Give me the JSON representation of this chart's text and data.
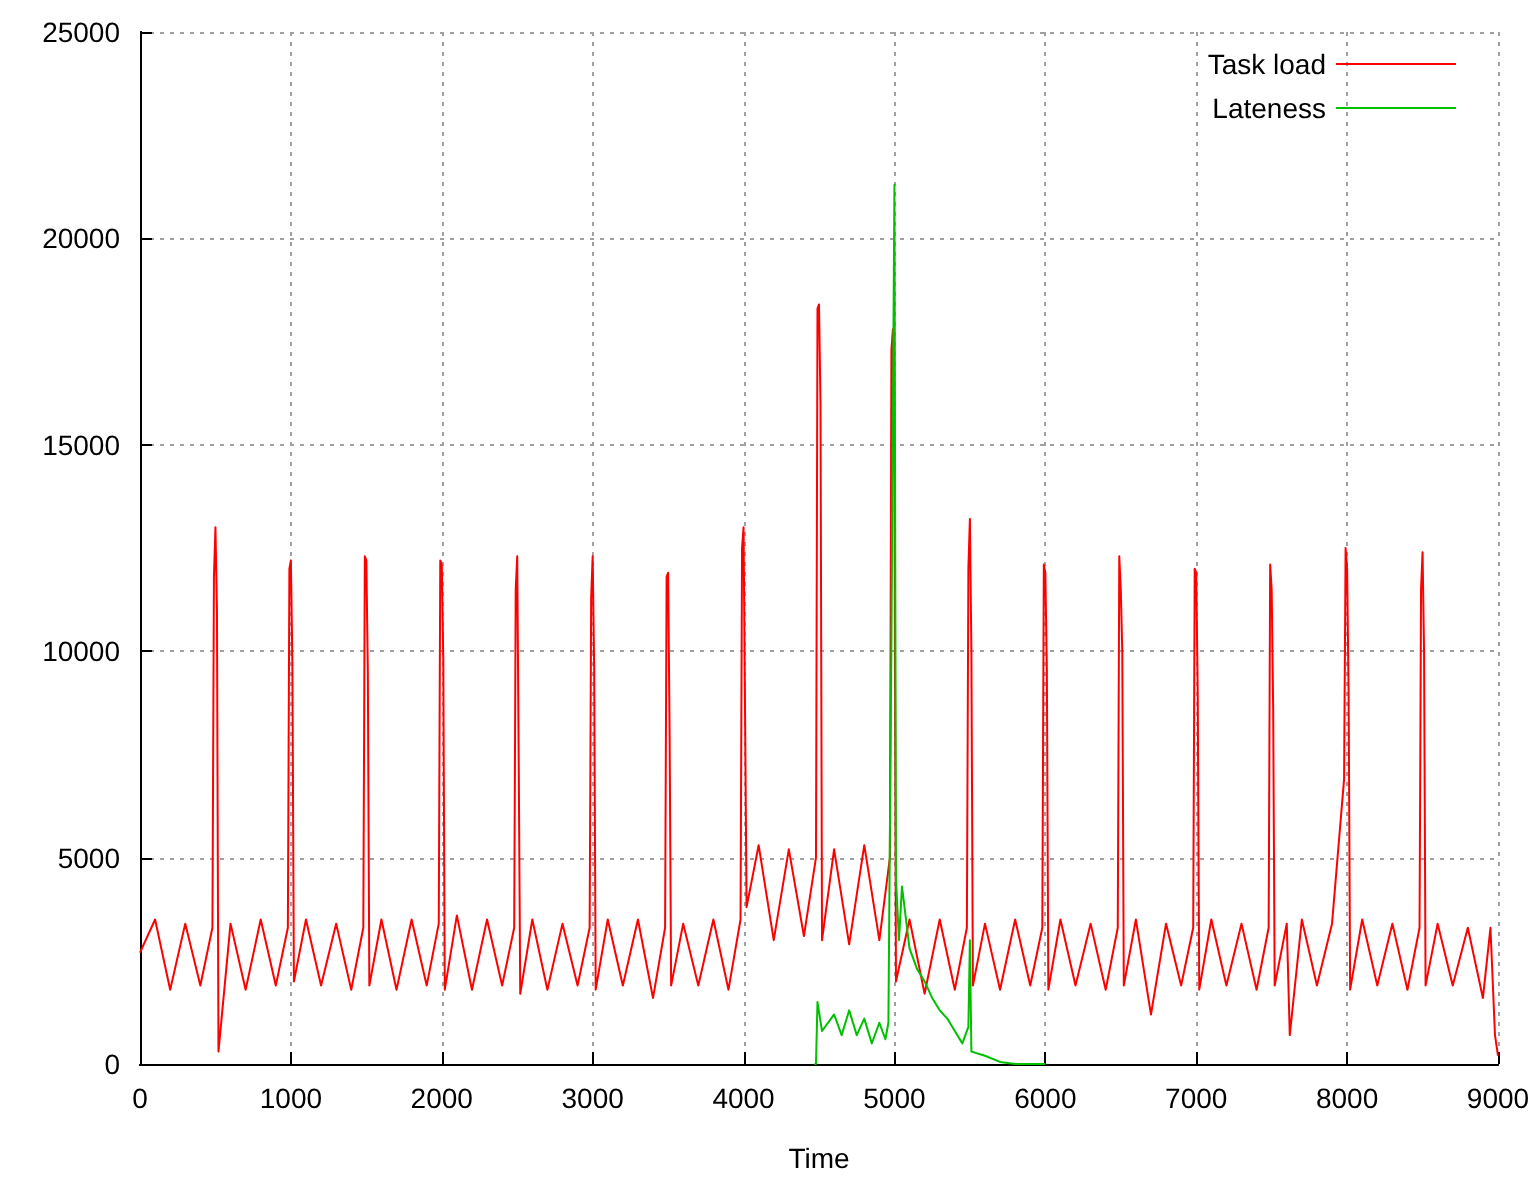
{
  "chart_data": {
    "type": "line",
    "xlabel": "Time",
    "xlim": [
      0,
      9000
    ],
    "xticks": [
      0,
      1000,
      2000,
      3000,
      4000,
      5000,
      6000,
      7000,
      8000,
      9000
    ],
    "ylim": [
      0,
      25000
    ],
    "yticks": [
      0,
      5000,
      10000,
      15000,
      20000,
      25000
    ],
    "grid": true,
    "legend": "top right",
    "marker": "none",
    "line_style": "solid",
    "series": [
      {
        "name": "Task load",
        "color": "#ff0000",
        "x": [
          0,
          100,
          200,
          300,
          400,
          480,
          490,
          500,
          510,
          520,
          600,
          700,
          800,
          900,
          980,
          990,
          1000,
          1010,
          1020,
          1100,
          1200,
          1300,
          1400,
          1480,
          1490,
          1500,
          1510,
          1520,
          1600,
          1700,
          1800,
          1900,
          1980,
          1990,
          2000,
          2010,
          2020,
          2100,
          2200,
          2300,
          2400,
          2480,
          2490,
          2500,
          2510,
          2520,
          2600,
          2700,
          2800,
          2900,
          2980,
          2990,
          3000,
          3010,
          3020,
          3100,
          3200,
          3300,
          3400,
          3480,
          3490,
          3500,
          3510,
          3520,
          3600,
          3700,
          3800,
          3900,
          3980,
          3990,
          4000,
          4010,
          4020,
          4100,
          4200,
          4300,
          4400,
          4480,
          4490,
          4500,
          4510,
          4520,
          4600,
          4700,
          4800,
          4900,
          4970,
          4980,
          4990,
          5000,
          5010,
          5100,
          5200,
          5300,
          5400,
          5480,
          5490,
          5500,
          5510,
          5520,
          5600,
          5700,
          5800,
          5900,
          5980,
          5990,
          6000,
          6010,
          6020,
          6100,
          6200,
          6300,
          6400,
          6480,
          6490,
          6500,
          6510,
          6520,
          6600,
          6700,
          6800,
          6900,
          6980,
          6990,
          7000,
          7010,
          7020,
          7100,
          7200,
          7300,
          7400,
          7480,
          7490,
          7500,
          7510,
          7520,
          7600,
          7620,
          7700,
          7800,
          7900,
          7980,
          7990,
          8000,
          8010,
          8020,
          8100,
          8200,
          8300,
          8400,
          8480,
          8490,
          8500,
          8510,
          8520,
          8600,
          8700,
          8800,
          8900,
          8950,
          8980,
          9000
        ],
        "values": [
          2700,
          3500,
          1800,
          3400,
          1900,
          3300,
          11800,
          13000,
          11000,
          300,
          3400,
          1800,
          3500,
          1900,
          3300,
          12000,
          12200,
          9700,
          2000,
          3500,
          1900,
          3400,
          1800,
          3300,
          12300,
          12200,
          9500,
          1900,
          3500,
          1800,
          3500,
          1900,
          3400,
          12200,
          12100,
          9800,
          1800,
          3600,
          1800,
          3500,
          1900,
          3300,
          11500,
          12300,
          7300,
          1700,
          3500,
          1800,
          3400,
          1900,
          3300,
          11300,
          12300,
          9600,
          1800,
          3500,
          1900,
          3500,
          1600,
          3300,
          11800,
          11900,
          8000,
          1900,
          3400,
          1900,
          3500,
          1800,
          3500,
          12500,
          13000,
          8500,
          3800,
          5300,
          3000,
          5200,
          3100,
          5000,
          18300,
          18400,
          16000,
          3000,
          5200,
          2900,
          5300,
          3000,
          5000,
          17300,
          17800,
          14000,
          2000,
          3500,
          1700,
          3500,
          1800,
          3300,
          12000,
          13200,
          10000,
          1900,
          3400,
          1800,
          3500,
          1900,
          3300,
          12100,
          11900,
          9600,
          1800,
          3500,
          1900,
          3400,
          1800,
          3300,
          12300,
          11500,
          10000,
          1900,
          3500,
          1200,
          3400,
          1900,
          3300,
          12000,
          11900,
          9000,
          1800,
          3500,
          1900,
          3400,
          1800,
          3300,
          12100,
          11500,
          8600,
          1900,
          3400,
          700,
          3500,
          1900,
          3400,
          6900,
          12500,
          12000,
          9000,
          1800,
          3500,
          1900,
          3400,
          1800,
          3300,
          11500,
          12400,
          10000,
          1900,
          3400,
          1900,
          3300,
          1600,
          3300,
          700,
          200
        ]
      },
      {
        "name": "Lateness",
        "color": "#00c000",
        "x": [
          4470,
          4480,
          4490,
          4520,
          4600,
          4650,
          4700,
          4750,
          4800,
          4850,
          4900,
          4940,
          4960,
          4980,
          5000,
          5010,
          5030,
          5050,
          5100,
          5150,
          5200,
          5250,
          5300,
          5350,
          5400,
          5450,
          5490,
          5500,
          5510,
          5600,
          5700,
          5800,
          6000
        ],
        "values": [
          0,
          0,
          1500,
          800,
          1200,
          700,
          1300,
          700,
          1100,
          500,
          1000,
          600,
          1000,
          10300,
          21300,
          4500,
          3000,
          4300,
          2800,
          2300,
          2000,
          1600,
          1300,
          1100,
          800,
          500,
          900,
          3000,
          300,
          200,
          50,
          0,
          0
        ]
      }
    ]
  }
}
